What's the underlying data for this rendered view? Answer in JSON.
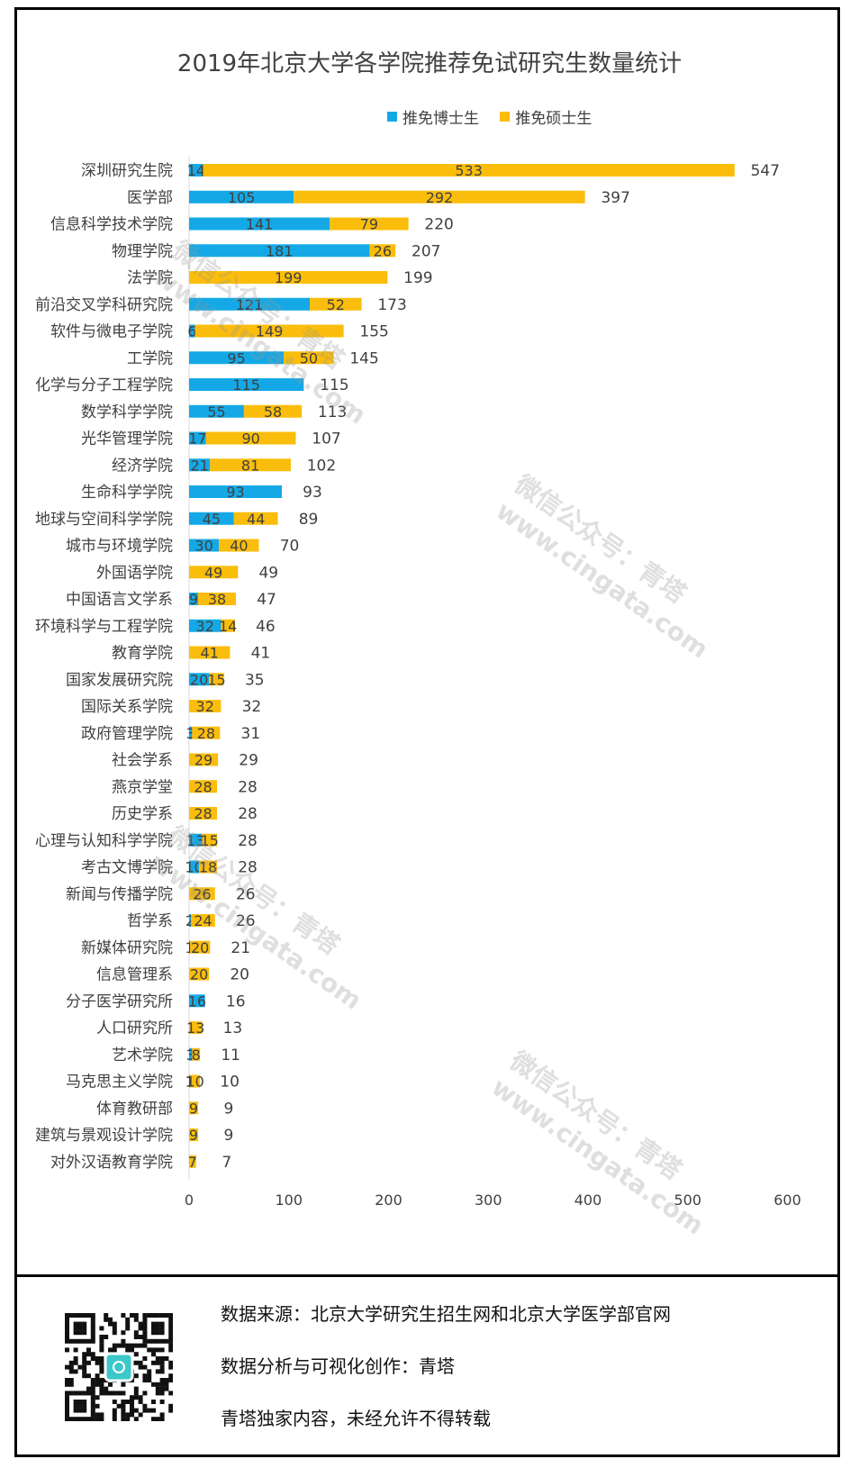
{
  "title": "2019年北京大学各学院推荐免试研究生数量统计",
  "legend": [
    {
      "label": "推免博士生",
      "color": "#14a9e6"
    },
    {
      "label": "推免硕士生",
      "color": "#fbbd0b"
    }
  ],
  "chart_data": {
    "type": "bar",
    "orientation": "horizontal",
    "stacked": true,
    "title": "2019年北京大学各学院推荐免试研究生数量统计",
    "categories": [
      "深圳研究生院",
      "医学部",
      "信息科学技术学院",
      "物理学院",
      "法学院",
      "前沿交叉学科研究院",
      "软件与微电子学院",
      "工学院",
      "化学与分子工程学院",
      "数学科学学院",
      "光华管理学院",
      "经济学院",
      "生命科学学院",
      "地球与空间科学学院",
      "城市与环境学院",
      "外国语学院",
      "中国语言文学系",
      "环境科学与工程学院",
      "教育学院",
      "国家发展研究院",
      "国际关系学院",
      "政府管理学院",
      "社会学系",
      "燕京学堂",
      "历史学系",
      "心理与认知科学学院",
      "考古文博学院",
      "新闻与传播学院",
      "哲学系",
      "新媒体研究院",
      "信息管理系",
      "分子医学研究所",
      "人口研究所",
      "艺术学院",
      "马克思主义学院",
      "体育教研部",
      "建筑与景观设计学院",
      "对外汉语教育学院"
    ],
    "series": [
      {
        "name": "推免博士生",
        "color": "#14a9e6",
        "values": [
          14,
          105,
          141,
          181,
          null,
          121,
          6,
          95,
          115,
          55,
          17,
          21,
          93,
          45,
          30,
          null,
          9,
          32,
          null,
          20,
          null,
          3,
          null,
          null,
          null,
          13,
          10,
          null,
          2,
          1,
          null,
          16,
          null,
          3,
          1,
          null,
          null,
          null
        ]
      },
      {
        "name": "推免硕士生",
        "color": "#fbbd0b",
        "values": [
          533,
          292,
          79,
          26,
          199,
          52,
          149,
          50,
          null,
          58,
          90,
          81,
          null,
          44,
          40,
          49,
          38,
          14,
          41,
          15,
          32,
          28,
          29,
          28,
          28,
          15,
          18,
          26,
          24,
          20,
          20,
          null,
          13,
          8,
          10,
          9,
          9,
          7
        ]
      }
    ],
    "totals": [
      547,
      397,
      220,
      207,
      199,
      173,
      155,
      145,
      115,
      113,
      107,
      102,
      93,
      89,
      70,
      49,
      47,
      46,
      41,
      35,
      32,
      31,
      29,
      28,
      28,
      28,
      28,
      26,
      26,
      21,
      20,
      16,
      13,
      11,
      10,
      9,
      9,
      7
    ],
    "xlim": [
      0,
      600
    ],
    "xticks": [
      0,
      100,
      200,
      300,
      400,
      500,
      600
    ],
    "grid": false,
    "legend_position": "top"
  },
  "footer": {
    "source": "数据来源：北京大学研究生招生网和北京大学医学部官网",
    "credit": "数据分析与可视化创作：青塔",
    "notice": "青塔独家内容，未经允许不得转载"
  },
  "watermark": {
    "line1": "微信公众号：青塔",
    "line2": "www.cingata.com"
  }
}
